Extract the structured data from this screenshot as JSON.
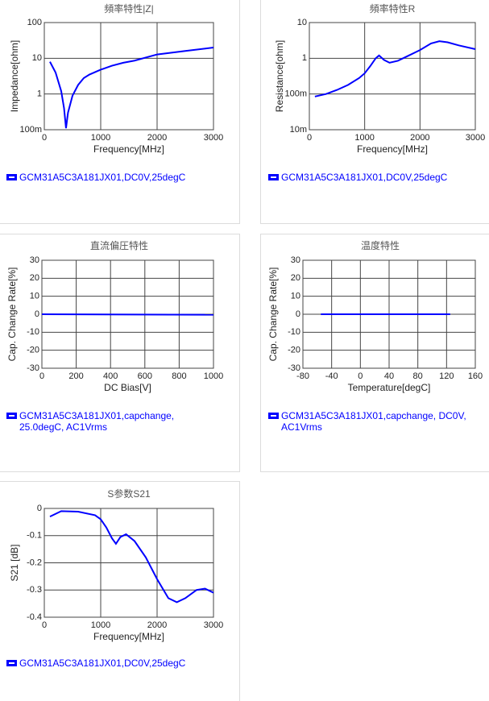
{
  "chart_data": [
    {
      "type": "line",
      "title": "頻率特性|Z|",
      "x_label": "Frequency[MHz]",
      "y_label": "Impedance[ohm]",
      "x": [
        100,
        200,
        300,
        350,
        385,
        420,
        500,
        600,
        700,
        800,
        1000,
        1200,
        1400,
        1600,
        2000,
        2500,
        3000
      ],
      "series": [
        {
          "name": "GCM31A5C3A181JX01,DC0V,25degC",
          "color": "#0000ff",
          "values": [
            8,
            4,
            1.2,
            0.4,
            0.11,
            0.3,
            0.9,
            1.8,
            2.8,
            3.5,
            4.8,
            6.2,
            7.5,
            8.6,
            12.8,
            16,
            20
          ]
        }
      ],
      "xlim": [
        0,
        3000
      ],
      "xticks": [
        0,
        1000,
        2000,
        3000
      ],
      "ylim": [
        0.1,
        100
      ],
      "yticks": [
        {
          "value": 0.1,
          "label": "100m"
        },
        1,
        10,
        100
      ],
      "yscale": "log",
      "grid": true
    },
    {
      "type": "line",
      "title": "頻率特性R",
      "x_label": "Frequency[MHz]",
      "y_label": "Resistance[ohm]",
      "x": [
        100,
        300,
        500,
        700,
        900,
        1000,
        1100,
        1200,
        1260,
        1350,
        1450,
        1600,
        1800,
        2000,
        2200,
        2350,
        2500,
        2700,
        3000
      ],
      "series": [
        {
          "name": "GCM31A5C3A181JX01,DC0V,25degC",
          "color": "#0000ff",
          "values": [
            0.085,
            0.1,
            0.13,
            0.18,
            0.28,
            0.38,
            0.6,
            1.0,
            1.2,
            0.9,
            0.75,
            0.85,
            1.2,
            1.7,
            2.6,
            3.0,
            2.8,
            2.3,
            1.8
          ]
        }
      ],
      "xlim": [
        0,
        3000
      ],
      "xticks": [
        0,
        1000,
        2000,
        3000
      ],
      "ylim": [
        0.01,
        10
      ],
      "yticks": [
        {
          "value": 0.01,
          "label": "10m"
        },
        {
          "value": 0.1,
          "label": "100m"
        },
        1,
        10
      ],
      "yscale": "log",
      "grid": true
    },
    {
      "type": "line",
      "title": "直流偏圧特性",
      "x_label": "DC Bias[V]",
      "y_label": "Cap. Change Rate[%]",
      "x": [
        0,
        1000
      ],
      "series": [
        {
          "name": "GCM31A5C3A181JX01,capchange, 25.0degC, AC1Vrms",
          "color": "#0000ff",
          "values": [
            0,
            -0.3
          ]
        }
      ],
      "xlim": [
        0,
        1000
      ],
      "xticks": [
        0,
        200,
        400,
        600,
        800,
        1000
      ],
      "ylim": [
        -30,
        30
      ],
      "yticks": [
        -30,
        -20,
        -10,
        0,
        10,
        20,
        30
      ],
      "grid": true
    },
    {
      "type": "line",
      "title": "温度特性",
      "x_label": "Temperature[degC]",
      "y_label": "Cap. Change Rate[%]",
      "x": [
        -55,
        125
      ],
      "series": [
        {
          "name": "GCM31A5C3A181JX01,capchange, DC0V, AC1Vrms",
          "color": "#0000ff",
          "values": [
            0,
            0
          ]
        }
      ],
      "xlim": [
        -80,
        160
      ],
      "xticks": [
        -80,
        -40,
        0,
        40,
        80,
        120,
        160
      ],
      "ylim": [
        -30,
        30
      ],
      "yticks": [
        -30,
        -20,
        -10,
        0,
        10,
        20,
        30
      ],
      "grid": true
    },
    {
      "type": "line",
      "title": "S参数S21",
      "x_label": "Frequency[MHz]",
      "y_label": "S21 [dB]",
      "x": [
        100,
        300,
        600,
        900,
        1000,
        1100,
        1200,
        1270,
        1350,
        1450,
        1600,
        1800,
        2000,
        2200,
        2350,
        2500,
        2700,
        2850,
        3000
      ],
      "series": [
        {
          "name": "GCM31A5C3A181JX01,DC0V,25degC",
          "color": "#0000ff",
          "values": [
            -0.03,
            -0.01,
            -0.012,
            -0.025,
            -0.04,
            -0.07,
            -0.11,
            -0.13,
            -0.105,
            -0.095,
            -0.12,
            -0.18,
            -0.26,
            -0.33,
            -0.345,
            -0.33,
            -0.3,
            -0.295,
            -0.31
          ]
        }
      ],
      "xlim": [
        0,
        3000
      ],
      "xticks": [
        0,
        1000,
        2000,
        3000
      ],
      "ylim": [
        -0.4,
        0
      ],
      "yticks": [
        -0.4,
        -0.3,
        -0.2,
        -0.1,
        0
      ],
      "grid": true
    }
  ]
}
